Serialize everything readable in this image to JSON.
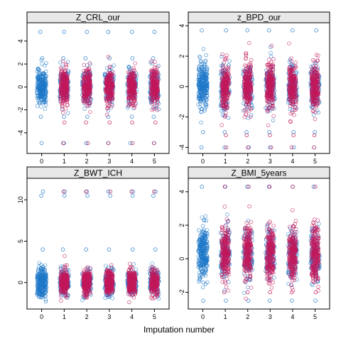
{
  "xlabel": "Imputation number",
  "colors": {
    "observed": "#1F78C8",
    "imputed": "#C2185B",
    "strip": "#E8E8E8",
    "frame": "#000000"
  },
  "chart_data": [
    {
      "type": "scatter",
      "title": "Z_CRL_our",
      "x": [
        0,
        1,
        2,
        3,
        4,
        5
      ],
      "ylim": [
        -5.8,
        5.6
      ],
      "yticks": [
        -4,
        -2,
        0,
        2,
        4
      ],
      "observed": {
        "center": 0,
        "spread": 1.05,
        "min": -3.2,
        "max": 4.8,
        "outliers": [
          -4.9,
          -2.6,
          2.5,
          4.8
        ]
      },
      "imputed": {
        "center": 0,
        "spread": 1.0,
        "min": -3.2,
        "max": 4.8,
        "outliers": [
          -4.9,
          -3.1
        ]
      }
    },
    {
      "type": "scatter",
      "title": "z_BPD_our",
      "x": [
        0,
        1,
        2,
        3,
        4,
        5
      ],
      "ylim": [
        -4.4,
        4.2
      ],
      "yticks": [
        -4,
        -2,
        0,
        2,
        4
      ],
      "observed": {
        "center": 0,
        "spread": 1.05,
        "min": -3.2,
        "max": 3.8,
        "outliers": [
          -4.0,
          -3.0,
          3.7
        ]
      },
      "imputed": {
        "center": 0,
        "spread": 1.0,
        "min": -3.2,
        "max": 3.8,
        "outliers": [
          -4.0,
          -3.2
        ]
      }
    },
    {
      "type": "scatter",
      "title": "Z_BWT_ICH",
      "x": [
        0,
        1,
        2,
        3,
        4,
        5
      ],
      "ylim": [
        -3.2,
        12.6
      ],
      "yticks": [
        0,
        5,
        10
      ],
      "observed": {
        "center": 0,
        "spread": 1.1,
        "min": -2.6,
        "max": 4.0,
        "outliers": [
          10.5,
          11.0,
          4.0
        ]
      },
      "imputed": {
        "center": 0,
        "spread": 1.0,
        "min": -2.6,
        "max": 4.0,
        "outliers": [
          11.0
        ]
      }
    },
    {
      "type": "scatter",
      "title": "Z_BMI_5years",
      "x": [
        0,
        1,
        2,
        3,
        4,
        5
      ],
      "ylim": [
        -3.0,
        4.8
      ],
      "yticks": [
        -2,
        0,
        2,
        4
      ],
      "observed": {
        "center": 0.3,
        "spread": 1.05,
        "min": -2.5,
        "max": 4.3,
        "outliers": [
          4.3,
          -2.5
        ]
      },
      "imputed": {
        "center": 0.3,
        "spread": 1.05,
        "min": -2.5,
        "max": 4.3,
        "outliers": [
          4.3,
          -2.0
        ]
      }
    }
  ]
}
